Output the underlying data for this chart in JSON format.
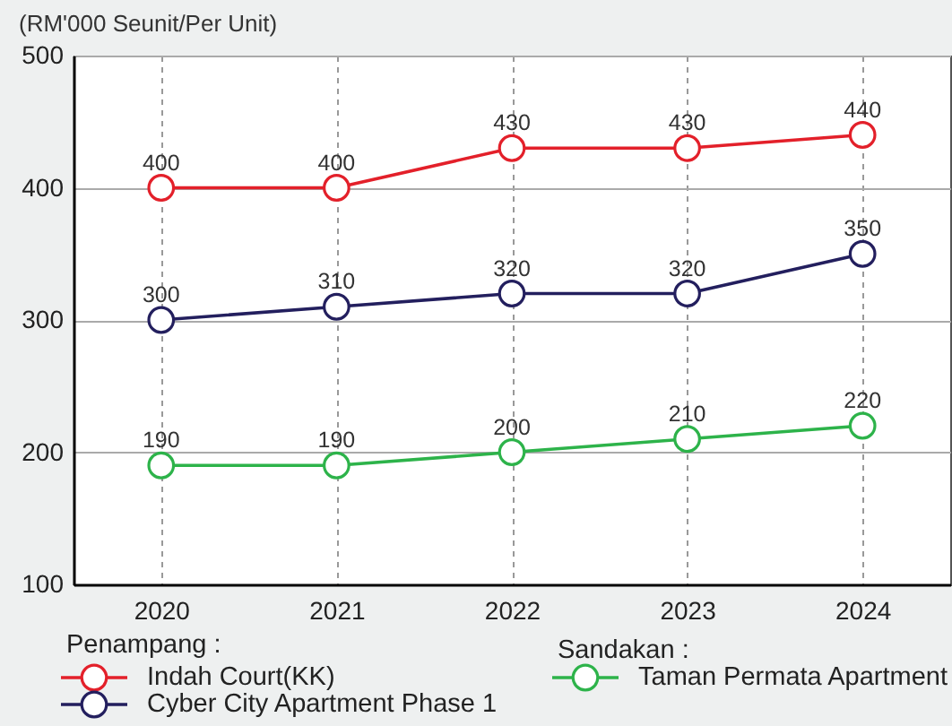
{
  "chart_data": {
    "type": "line",
    "ylabel": "(RM'000 Seunit/Per Unit)",
    "categories": [
      "2020",
      "2021",
      "2022",
      "2023",
      "2024"
    ],
    "series": [
      {
        "name": "Indah Court(KK)",
        "color": "#e3202a",
        "values": [
          400,
          400,
          430,
          430,
          440
        ]
      },
      {
        "name": "Cyber City Apartment Phase 1",
        "color": "#231f5e",
        "values": [
          300,
          310,
          320,
          320,
          350
        ]
      },
      {
        "name": "Taman Permata Apartment",
        "color": "#2db34a",
        "values": [
          190,
          190,
          200,
          210,
          220
        ]
      }
    ],
    "ylim": [
      100,
      500
    ],
    "yticks": [
      100,
      200,
      300,
      400,
      500
    ],
    "grid": true,
    "legend": "bottom",
    "marker": "circle",
    "data_labels": true,
    "annotations": [
      "Penampang :",
      "Sandakan :"
    ]
  }
}
